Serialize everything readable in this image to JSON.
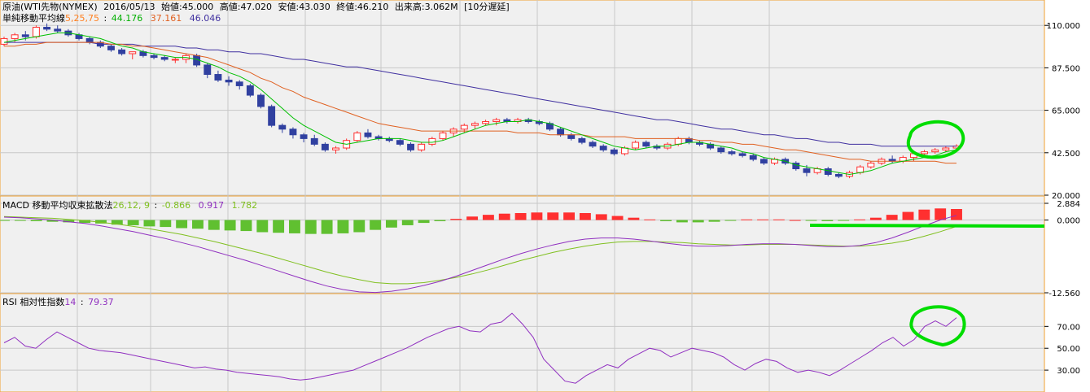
{
  "header": {
    "name": "原油(WTI先物(NYMEX)",
    "date": "2016/05/13",
    "open_label": "始値:",
    "open": "45.000",
    "high_label": "高値:",
    "high": "47.020",
    "low_label": "安値:",
    "low": "43.030",
    "close_label": "終値:",
    "close": "46.210",
    "volume_label": "出来高:",
    "volume": "3.062M",
    "delay": "[10分遅延]"
  },
  "sma_legend": {
    "title": "単純移動平均線",
    "periods": "5,25,75",
    "sep": ":",
    "v5": "44.176",
    "v25": "37.161",
    "v75": "46.046"
  },
  "macd_legend": {
    "title": "MACD 移動平均収束拡散法",
    "params": "26,12, 9",
    "sep": ":",
    "macd": "-0.866",
    "signal": "0.917",
    "hist": "1.782"
  },
  "rsi_legend": {
    "title": "RSI 相対性指数",
    "period": "14",
    "sep": ":",
    "value": "79.37"
  },
  "colors": {
    "bg": "#f0f0f0",
    "grid": "#c8c8c8",
    "border": "#f0a030",
    "up": "#ff3030",
    "down": "#3040a0",
    "sma5": "#00c000",
    "sma25": "#e06020",
    "sma75": "#4030a0",
    "macd": "#9030c0",
    "signal": "#80c020",
    "hist_pos": "#ff3030",
    "hist_neg": "#60c030",
    "rsi": "#9030c0",
    "annotation": "#00dd00"
  },
  "chart_data": [
    {
      "type": "candlestick",
      "panel": "price",
      "ylim": [
        20,
        120
      ],
      "yticks": [
        "110.000",
        "87.500",
        "65.000",
        "42.500",
        "20.000"
      ],
      "ytick_values": [
        110,
        87.5,
        65,
        42.5,
        20
      ],
      "ohlc": [
        [
          100,
          104,
          99,
          103
        ],
        [
          103,
          106,
          101,
          105
        ],
        [
          105,
          107,
          102,
          104
        ],
        [
          104,
          110,
          103,
          109
        ],
        [
          109,
          111,
          107,
          108
        ],
        [
          108,
          110,
          106,
          107
        ],
        [
          107,
          108,
          104,
          105
        ],
        [
          105,
          106,
          102,
          103
        ],
        [
          103,
          104,
          100,
          101
        ],
        [
          101,
          102,
          98,
          99
        ],
        [
          99,
          100,
          96,
          97
        ],
        [
          97,
          98,
          94,
          95
        ],
        [
          95,
          96,
          92,
          96
        ],
        [
          96,
          97,
          93,
          94
        ],
        [
          94,
          95,
          92,
          93
        ],
        [
          93,
          94,
          91,
          92
        ],
        [
          92,
          93,
          90,
          92
        ],
        [
          92,
          95,
          90,
          94
        ],
        [
          94,
          95,
          88,
          89
        ],
        [
          89,
          90,
          82,
          84
        ],
        [
          84,
          86,
          80,
          81
        ],
        [
          81,
          83,
          78,
          80
        ],
        [
          80,
          81,
          76,
          78
        ],
        [
          78,
          79,
          72,
          73
        ],
        [
          73,
          74,
          66,
          67
        ],
        [
          67,
          68,
          56,
          57
        ],
        [
          57,
          58,
          53,
          55
        ],
        [
          55,
          56,
          50,
          52
        ],
        [
          52,
          53,
          48,
          50
        ],
        [
          50,
          52,
          46,
          47
        ],
        [
          47,
          48,
          43,
          44
        ],
        [
          44,
          46,
          42,
          45
        ],
        [
          45,
          50,
          44,
          49
        ],
        [
          49,
          54,
          48,
          53
        ],
        [
          53,
          55,
          50,
          51
        ],
        [
          51,
          52,
          49,
          50
        ],
        [
          50,
          51,
          48,
          49
        ],
        [
          49,
          50,
          46,
          47
        ],
        [
          47,
          48,
          43,
          44
        ],
        [
          44,
          48,
          43,
          47
        ],
        [
          47,
          51,
          46,
          50
        ],
        [
          50,
          54,
          49,
          53
        ],
        [
          53,
          56,
          51,
          55
        ],
        [
          55,
          58,
          53,
          57
        ],
        [
          57,
          59,
          55,
          58
        ],
        [
          58,
          60,
          57,
          59
        ],
        [
          59,
          61,
          57,
          60
        ],
        [
          60,
          61,
          58,
          59
        ],
        [
          59,
          61,
          58,
          60
        ],
        [
          60,
          61,
          58,
          59
        ],
        [
          59,
          60,
          57,
          58
        ],
        [
          58,
          59,
          54,
          55
        ],
        [
          55,
          56,
          51,
          52
        ],
        [
          52,
          53,
          49,
          50
        ],
        [
          50,
          51,
          47,
          48
        ],
        [
          48,
          49,
          45,
          46
        ],
        [
          46,
          47,
          43,
          44
        ],
        [
          44,
          45,
          41,
          42
        ],
        [
          42,
          46,
          41,
          45
        ],
        [
          45,
          49,
          44,
          48
        ],
        [
          48,
          49,
          45,
          46
        ],
        [
          46,
          47,
          44,
          45
        ],
        [
          45,
          48,
          44,
          47
        ],
        [
          47,
          51,
          46,
          50
        ],
        [
          50,
          51,
          47,
          48
        ],
        [
          48,
          49,
          46,
          47
        ],
        [
          47,
          48,
          44,
          45
        ],
        [
          45,
          46,
          42,
          43
        ],
        [
          43,
          44,
          41,
          42
        ],
        [
          42,
          43,
          40,
          41
        ],
        [
          41,
          42,
          38,
          39
        ],
        [
          39,
          40,
          36,
          37
        ],
        [
          37,
          40,
          36,
          39
        ],
        [
          39,
          40,
          36,
          37
        ],
        [
          37,
          38,
          33,
          34
        ],
        [
          34,
          36,
          30,
          32
        ],
        [
          32,
          35,
          31,
          34
        ],
        [
          34,
          35,
          30,
          31
        ],
        [
          31,
          32,
          29,
          30
        ],
        [
          30,
          33,
          29,
          32
        ],
        [
          32,
          36,
          31,
          35
        ],
        [
          35,
          38,
          34,
          37
        ],
        [
          37,
          40,
          36,
          39
        ],
        [
          39,
          41,
          37,
          38
        ],
        [
          38,
          41,
          37,
          40
        ],
        [
          40,
          43,
          38,
          42
        ],
        [
          42,
          44,
          40,
          43
        ],
        [
          43,
          45,
          42,
          44
        ],
        [
          44,
          46,
          43,
          45
        ],
        [
          45,
          47,
          43,
          46
        ]
      ],
      "sma5": [
        101,
        102,
        103,
        104,
        105,
        106,
        106,
        105,
        104,
        103,
        101,
        99,
        98,
        96,
        95,
        94,
        93,
        93,
        92,
        90,
        88,
        85,
        83,
        80,
        76,
        71,
        66,
        61,
        57,
        54,
        51,
        48,
        47,
        48,
        49,
        50,
        50,
        50,
        49,
        48,
        48,
        49,
        51,
        53,
        55,
        57,
        58,
        59,
        59,
        60,
        59,
        58,
        56,
        54,
        52,
        50,
        48,
        46,
        45,
        44,
        45,
        46,
        46,
        47,
        48,
        48,
        47,
        46,
        45,
        43,
        42,
        40,
        39,
        38,
        36,
        35,
        34,
        33,
        32,
        31,
        32,
        33,
        35,
        37,
        38,
        39,
        40,
        41,
        43,
        44
      ],
      "sma25": [
        99,
        99,
        100,
        100,
        101,
        101,
        101,
        101,
        101,
        101,
        100,
        100,
        99,
        99,
        98,
        97,
        96,
        95,
        94,
        93,
        91,
        89,
        87,
        85,
        82,
        80,
        77,
        75,
        72,
        70,
        68,
        66,
        64,
        62,
        60,
        58,
        57,
        56,
        55,
        54,
        54,
        54,
        54,
        54,
        54,
        54,
        54,
        54,
        53,
        53,
        53,
        52,
        52,
        52,
        52,
        51,
        51,
        51,
        51,
        50,
        50,
        50,
        50,
        50,
        50,
        49,
        49,
        48,
        48,
        47,
        47,
        46,
        45,
        44,
        44,
        43,
        42,
        41,
        40,
        39,
        39,
        38,
        38,
        38,
        38,
        38,
        38,
        38,
        37,
        37
      ],
      "sma75": [
        101,
        101,
        101,
        101,
        101,
        101,
        101,
        101,
        101,
        100,
        100,
        100,
        100,
        99,
        99,
        99,
        99,
        98,
        98,
        97,
        97,
        96,
        96,
        95,
        95,
        94,
        93,
        92,
        92,
        91,
        90,
        89,
        88,
        88,
        87,
        86,
        85,
        84,
        83,
        82,
        81,
        80,
        79,
        78,
        77,
        76,
        75,
        74,
        73,
        72,
        71,
        70,
        69,
        68,
        67,
        66,
        65,
        64,
        63,
        62,
        61,
        60,
        60,
        59,
        58,
        57,
        56,
        55,
        55,
        54,
        53,
        52,
        52,
        51,
        50,
        50,
        49,
        48,
        48,
        47,
        47,
        47,
        46,
        46,
        46,
        46,
        46,
        46,
        46,
        46
      ]
    },
    {
      "type": "macd",
      "panel": "macd",
      "ylim": [
        -12.56,
        2.884
      ],
      "yticks": [
        "2.884",
        "0.000",
        "-12.560"
      ],
      "ytick_values": [
        2.884,
        0,
        -12.56
      ],
      "macd": [
        0.5,
        0.4,
        0.2,
        0,
        -0.3,
        -0.6,
        -1,
        -1.5,
        -2,
        -2.6,
        -3.2,
        -3.9,
        -4.6,
        -5.4,
        -6.2,
        -7,
        -7.9,
        -8.8,
        -9.7,
        -10.6,
        -11.4,
        -12,
        -12.4,
        -12.5,
        -12.3,
        -11.9,
        -11.3,
        -10.6,
        -9.7,
        -8.7,
        -7.7,
        -6.7,
        -5.8,
        -5,
        -4.3,
        -3.7,
        -3.3,
        -3.1,
        -3.1,
        -3.3,
        -3.6,
        -4,
        -4.3,
        -4.5,
        -4.5,
        -4.4,
        -4.2,
        -4.1,
        -4.1,
        -4.2,
        -4.4,
        -4.6,
        -4.6,
        -4.4,
        -3.9,
        -3.1,
        -2.1,
        -1,
        0,
        0.8
      ],
      "signal": [
        0.6,
        0.5,
        0.4,
        0.3,
        0.1,
        -0.1,
        -0.4,
        -0.7,
        -1.1,
        -1.5,
        -2,
        -2.5,
        -3.1,
        -3.7,
        -4.4,
        -5.1,
        -5.8,
        -6.6,
        -7.4,
        -8.2,
        -9,
        -9.7,
        -10.3,
        -10.8,
        -11,
        -11,
        -10.8,
        -10.4,
        -9.9,
        -9.3,
        -8.6,
        -7.8,
        -7,
        -6.3,
        -5.6,
        -5,
        -4.5,
        -4.1,
        -3.8,
        -3.7,
        -3.7,
        -3.8,
        -3.9,
        -4.1,
        -4.2,
        -4.3,
        -4.3,
        -4.2,
        -4.2,
        -4.2,
        -4.3,
        -4.4,
        -4.5,
        -4.5,
        -4.3,
        -4,
        -3.5,
        -2.8,
        -2,
        -1.1
      ],
      "histogram": [
        -0.1,
        -0.1,
        -0.2,
        -0.3,
        -0.4,
        -0.5,
        -0.6,
        -0.8,
        -0.9,
        -1.1,
        -1.2,
        -1.4,
        -1.5,
        -1.7,
        -1.8,
        -1.9,
        -2.1,
        -2.2,
        -2.3,
        -2.4,
        -2.4,
        -2.3,
        -2.1,
        -1.7,
        -1.3,
        -0.9,
        -0.5,
        -0.2,
        0.2,
        0.6,
        0.9,
        1.1,
        1.2,
        1.3,
        1.3,
        1.3,
        1.2,
        1,
        0.7,
        0.4,
        0.1,
        -0.2,
        -0.4,
        -0.4,
        -0.3,
        -0.1,
        0.1,
        0.1,
        0.1,
        0,
        -0.1,
        -0.2,
        -0.1,
        0.1,
        0.4,
        0.9,
        1.4,
        1.8,
        2,
        1.9
      ]
    },
    {
      "type": "line",
      "panel": "rsi",
      "ylim": [
        10,
        100
      ],
      "yticks": [
        "70.00",
        "50.00",
        "30.00"
      ],
      "ytick_values": [
        70,
        50,
        30
      ],
      "rsi": [
        55,
        60,
        52,
        50,
        58,
        65,
        60,
        55,
        50,
        48,
        47,
        46,
        44,
        42,
        40,
        38,
        36,
        34,
        32,
        33,
        31,
        30,
        28,
        27,
        26,
        25,
        24,
        22,
        21,
        22,
        24,
        26,
        28,
        30,
        34,
        38,
        42,
        46,
        50,
        55,
        60,
        64,
        68,
        70,
        66,
        65,
        72,
        74,
        82,
        72,
        60,
        40,
        30,
        20,
        18,
        25,
        30,
        35,
        32,
        40,
        45,
        50,
        48,
        42,
        46,
        50,
        48,
        46,
        42,
        35,
        30,
        36,
        40,
        38,
        32,
        28,
        30,
        28,
        25,
        30,
        36,
        42,
        48,
        55,
        60,
        52,
        58,
        70,
        75,
        70,
        78
      ]
    }
  ]
}
